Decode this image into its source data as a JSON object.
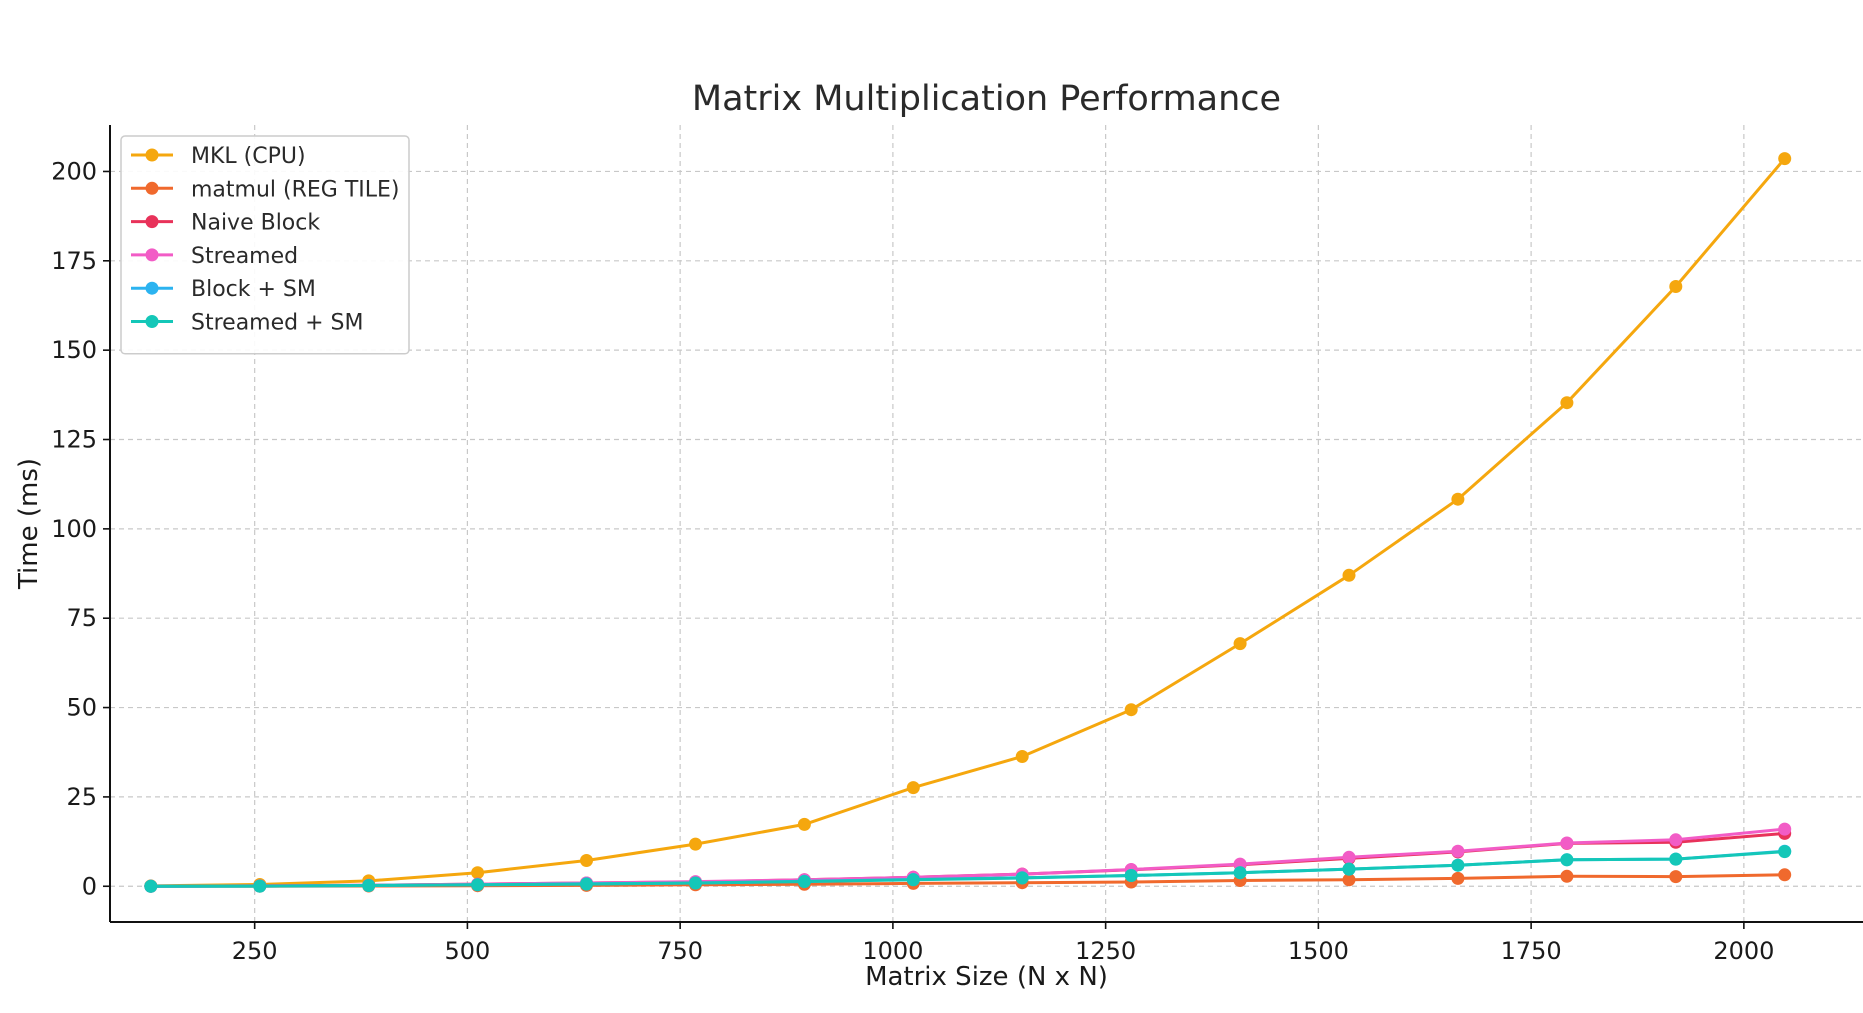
{
  "chart_data": {
    "type": "line",
    "title": "Matrix Multiplication Performance",
    "xlabel": "Matrix Size (N x N)",
    "ylabel": "Time (ms)",
    "xlim": [
      80,
      2140
    ],
    "ylim": [
      -10,
      213
    ],
    "xticks": [
      250,
      500,
      750,
      1000,
      1250,
      1500,
      1750,
      2000
    ],
    "yticks": [
      0,
      25,
      50,
      75,
      100,
      125,
      150,
      175,
      200
    ],
    "grid": true,
    "legend_position": "top-left",
    "x": [
      128,
      256,
      384,
      512,
      640,
      768,
      896,
      1024,
      1152,
      1280,
      1408,
      1536,
      1664,
      1792,
      1920,
      2048
    ],
    "series": [
      {
        "name": "MKL (CPU)",
        "color": "#F5A70E",
        "values": [
          0.1,
          0.5,
          1.5,
          3.8,
          7.2,
          11.8,
          17.3,
          27.6,
          36.3,
          49.4,
          67.9,
          87.0,
          108.3,
          135.3,
          167.8,
          203.6
        ]
      },
      {
        "name": "matmul (REG TILE)",
        "color": "#F0692D",
        "values": [
          0.0,
          0.02,
          0.06,
          0.15,
          0.25,
          0.4,
          0.55,
          0.8,
          1.0,
          1.2,
          1.6,
          1.8,
          2.2,
          2.8,
          2.7,
          3.2
        ]
      },
      {
        "name": "Naive Block",
        "color": "#E8325A",
        "values": [
          0.0,
          0.1,
          0.3,
          0.6,
          0.9,
          1.2,
          1.8,
          2.5,
          3.4,
          4.6,
          6.0,
          7.8,
          9.6,
          12.0,
          12.3,
          14.8
        ]
      },
      {
        "name": "Streamed",
        "color": "#F25CC6",
        "values": [
          0.0,
          0.1,
          0.3,
          0.6,
          0.9,
          1.3,
          1.8,
          2.5,
          3.4,
          4.7,
          6.2,
          8.1,
          9.8,
          12.1,
          13.0,
          16.0
        ]
      },
      {
        "name": "Block + SM",
        "color": "#2BB3F0",
        "values": [
          0.0,
          0.05,
          0.2,
          0.4,
          0.7,
          0.9,
          1.4,
          1.9,
          2.4,
          3.0,
          3.8,
          4.8,
          5.9,
          7.4,
          7.6,
          9.8
        ]
      },
      {
        "name": "Streamed + SM",
        "color": "#14C7B8",
        "values": [
          0.0,
          0.05,
          0.2,
          0.4,
          0.6,
          0.9,
          1.3,
          1.8,
          2.3,
          3.0,
          3.8,
          4.8,
          5.9,
          7.4,
          7.6,
          9.7
        ]
      }
    ]
  }
}
